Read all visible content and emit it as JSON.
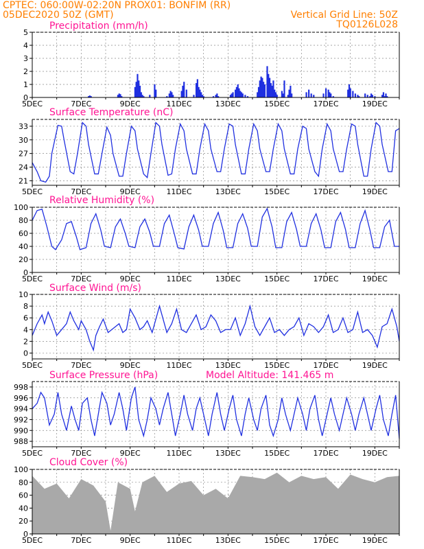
{
  "header": {
    "line1": "CPTEC:   060:00W-02:20N   PROX01: BONFIM (RR)",
    "line2": "05DEC2020 50Z (GMT)",
    "grid_note": "Vertical Grid Line: 50Z",
    "code": "TQ0126L028"
  },
  "date_ticks": [
    "5DEC",
    "7DEC",
    "9DEC",
    "11DEC",
    "13DEC",
    "15DEC",
    "17DEC",
    "19DEC"
  ],
  "colors": {
    "line": "#1f2fe0",
    "bar": "#1f2fe0",
    "cloud": "#a9a9a9",
    "header": "#ff7f00",
    "title": "#ff1493"
  },
  "chart_data": [
    {
      "type": "bar",
      "title": "Precipitation (mm/h)",
      "ylim": [
        0,
        5
      ],
      "yticks": [
        0,
        1,
        2,
        3,
        4,
        5
      ],
      "x_days": [
        2.3,
        2.35,
        2.4,
        3.5,
        3.55,
        3.6,
        3.65,
        4.2,
        4.25,
        4.3,
        4.35,
        4.4,
        4.45,
        4.5,
        4.55,
        4.8,
        5.0,
        5.05,
        5.5,
        5.6,
        5.65,
        5.7,
        5.75,
        6.1,
        6.15,
        6.2,
        6.3,
        6.6,
        6.7,
        6.75,
        6.8,
        6.85,
        6.9,
        6.95,
        7.0,
        7.4,
        7.5,
        7.55,
        7.6,
        8.1,
        8.15,
        8.2,
        8.3,
        8.35,
        8.4,
        8.45,
        8.5,
        8.55,
        8.6,
        8.7,
        8.8,
        9.2,
        9.25,
        9.3,
        9.35,
        9.4,
        9.45,
        9.5,
        9.6,
        9.65,
        9.7,
        9.75,
        9.8,
        9.85,
        9.9,
        9.95,
        10.0,
        10.2,
        10.25,
        10.3,
        10.45,
        10.5,
        10.55,
        10.6,
        11.2,
        11.3,
        11.4,
        11.5,
        11.9,
        12.0,
        12.1,
        12.15,
        12.2,
        12.3,
        12.9,
        12.95,
        13.0,
        13.1,
        13.2,
        13.3,
        13.35,
        13.6,
        13.7,
        13.8,
        13.85,
        13.9,
        14.0,
        14.3,
        14.35,
        14.4,
        14.45,
        14.5
      ],
      "values": [
        0.1,
        0.15,
        0.1,
        0.2,
        0.3,
        0.25,
        0.1,
        0.8,
        1.2,
        1.8,
        1.3,
        0.9,
        0.4,
        0.2,
        0.1,
        0.2,
        1.0,
        0.6,
        0.1,
        0.3,
        0.5,
        0.4,
        0.2,
        0.5,
        0.9,
        1.2,
        0.6,
        0.2,
        1.1,
        1.4,
        0.8,
        0.6,
        0.4,
        0.2,
        0.1,
        0.1,
        0.2,
        0.3,
        0.1,
        0.2,
        0.3,
        0.4,
        0.6,
        0.8,
        1.0,
        0.7,
        0.5,
        0.4,
        0.3,
        0.2,
        0.1,
        0.4,
        0.8,
        1.3,
        1.6,
        1.5,
        1.2,
        1.0,
        2.4,
        1.8,
        1.5,
        1.1,
        0.9,
        1.3,
        0.6,
        0.4,
        0.2,
        0.5,
        0.3,
        1.3,
        0.2,
        0.6,
        0.9,
        0.3,
        0.4,
        0.6,
        0.3,
        0.2,
        0.3,
        0.7,
        0.6,
        0.4,
        0.3,
        0.1,
        0.6,
        1.0,
        0.7,
        0.5,
        0.3,
        0.2,
        0.1,
        0.3,
        0.2,
        0.1,
        0.3,
        0.2,
        0.1,
        0.2,
        0.4,
        0.1,
        0.3,
        0.1
      ]
    },
    {
      "type": "line",
      "title": "Surface Temperature (nC)",
      "ylim": [
        20,
        34.5
      ],
      "yticks": [
        21,
        24,
        27,
        30,
        33
      ],
      "x_days": [
        0,
        0.2,
        0.35,
        0.55,
        0.7,
        0.8,
        1.05,
        1.2,
        1.3,
        1.55,
        1.7,
        1.85,
        2.05,
        2.2,
        2.3,
        2.55,
        2.7,
        2.85,
        3.05,
        3.2,
        3.3,
        3.55,
        3.7,
        3.85,
        4.05,
        4.2,
        4.3,
        4.55,
        4.7,
        4.85,
        5.05,
        5.2,
        5.3,
        5.55,
        5.7,
        5.85,
        6.05,
        6.2,
        6.3,
        6.55,
        6.7,
        6.85,
        7.05,
        7.2,
        7.3,
        7.55,
        7.7,
        7.85,
        8.05,
        8.2,
        8.3,
        8.55,
        8.7,
        8.85,
        9.05,
        9.2,
        9.3,
        9.55,
        9.7,
        9.85,
        10.05,
        10.2,
        10.3,
        10.55,
        10.7,
        10.85,
        11.05,
        11.2,
        11.3,
        11.55,
        11.7,
        11.85,
        12.05,
        12.2,
        12.3,
        12.55,
        12.7,
        12.85,
        13.05,
        13.2,
        13.3,
        13.55,
        13.7,
        13.85,
        14.05,
        14.2,
        14.3,
        14.55,
        14.7,
        14.85,
        15.0
      ],
      "values": [
        25,
        23,
        21,
        20.7,
        22,
        27,
        33.2,
        33,
        30,
        23,
        22.5,
        27,
        33.8,
        33,
        29,
        22.5,
        22.5,
        27,
        32.8,
        31,
        27,
        22,
        22,
        27,
        33,
        32,
        28,
        22.5,
        21.7,
        27,
        33.8,
        33,
        29,
        22.2,
        22.5,
        28,
        33.5,
        32,
        28,
        22.5,
        22.5,
        28,
        33.5,
        32,
        28,
        23,
        23,
        28,
        33.5,
        33,
        29,
        22.5,
        22.5,
        28,
        33.5,
        32,
        28,
        23,
        23,
        28,
        33.5,
        32,
        28,
        22.5,
        22.5,
        28,
        33,
        32.5,
        28,
        23,
        22,
        28,
        33.5,
        32,
        28,
        23,
        23,
        28,
        33.5,
        33,
        29,
        22,
        22,
        28,
        33.8,
        33,
        29,
        23,
        23,
        32,
        32.5
      ]
    },
    {
      "type": "line",
      "title": "Relative Humidity (%)",
      "ylim": [
        0,
        100
      ],
      "yticks": [
        0,
        20,
        40,
        60,
        80,
        100
      ],
      "x_days": [
        0,
        0.2,
        0.4,
        0.6,
        0.8,
        0.95,
        1.2,
        1.4,
        1.6,
        1.8,
        1.95,
        2.2,
        2.4,
        2.6,
        2.8,
        2.95,
        3.2,
        3.4,
        3.6,
        3.8,
        3.95,
        4.2,
        4.4,
        4.6,
        4.8,
        4.95,
        5.2,
        5.4,
        5.6,
        5.8,
        5.95,
        6.2,
        6.4,
        6.6,
        6.8,
        6.95,
        7.2,
        7.4,
        7.6,
        7.8,
        7.95,
        8.2,
        8.4,
        8.6,
        8.8,
        8.95,
        9.2,
        9.4,
        9.6,
        9.8,
        9.95,
        10.2,
        10.4,
        10.6,
        10.8,
        10.95,
        11.2,
        11.4,
        11.6,
        11.8,
        11.95,
        12.2,
        12.4,
        12.6,
        12.8,
        12.95,
        13.2,
        13.4,
        13.6,
        13.8,
        13.95,
        14.2,
        14.4,
        14.6,
        14.8,
        15.0
      ],
      "values": [
        80,
        95,
        97,
        70,
        40,
        35,
        50,
        75,
        78,
        55,
        35,
        38,
        75,
        90,
        65,
        40,
        38,
        70,
        82,
        60,
        40,
        38,
        70,
        82,
        62,
        40,
        40,
        75,
        88,
        60,
        38,
        36,
        70,
        88,
        65,
        40,
        40,
        75,
        92,
        65,
        38,
        38,
        75,
        90,
        68,
        40,
        40,
        85,
        98,
        70,
        38,
        38,
        78,
        92,
        66,
        40,
        40,
        75,
        90,
        65,
        38,
        38,
        78,
        92,
        66,
        38,
        38,
        75,
        95,
        65,
        38,
        38,
        70,
        80,
        40,
        40
      ]
    },
    {
      "type": "line",
      "title": "Surface Wind (m/s)",
      "ylim": [
        -1,
        10
      ],
      "yticks": [
        0,
        2,
        4,
        6,
        8,
        10
      ],
      "x_days": [
        0,
        0.2,
        0.4,
        0.5,
        0.65,
        0.8,
        1.0,
        1.2,
        1.4,
        1.55,
        1.7,
        1.9,
        2.0,
        2.2,
        2.35,
        2.5,
        2.6,
        2.75,
        2.9,
        3.1,
        3.25,
        3.4,
        3.55,
        3.7,
        3.85,
        4.0,
        4.2,
        4.4,
        4.55,
        4.7,
        4.9,
        5.0,
        5.2,
        5.4,
        5.5,
        5.7,
        5.9,
        6.1,
        6.3,
        6.5,
        6.7,
        6.9,
        7.1,
        7.3,
        7.5,
        7.7,
        7.9,
        8.1,
        8.3,
        8.5,
        8.7,
        8.9,
        9.1,
        9.3,
        9.5,
        9.7,
        9.9,
        10.1,
        10.3,
        10.5,
        10.7,
        10.9,
        11.1,
        11.3,
        11.5,
        11.7,
        11.9,
        12.1,
        12.3,
        12.5,
        12.7,
        12.9,
        13.1,
        13.3,
        13.5,
        13.7,
        13.9,
        14.1,
        14.3,
        14.5,
        14.7,
        14.9,
        15.0
      ],
      "values": [
        3,
        5,
        6.5,
        5,
        7,
        5.5,
        3,
        4,
        5,
        7,
        5.5,
        4,
        5.5,
        4,
        2,
        0.5,
        3,
        4.5,
        5.8,
        3.5,
        4,
        4.5,
        5,
        3.5,
        4,
        7.5,
        6,
        4,
        4.5,
        5.5,
        3.5,
        5,
        8,
        5,
        3.5,
        5,
        7.5,
        4,
        3.5,
        5,
        6.5,
        4,
        4.5,
        6.5,
        5.5,
        3.5,
        4,
        4,
        6,
        3,
        5,
        8,
        4.5,
        3,
        4.5,
        6,
        3.5,
        4,
        3,
        4,
        4.5,
        6,
        3,
        5,
        4.5,
        3.5,
        4.5,
        6.5,
        3.5,
        4,
        6,
        3.5,
        4,
        7,
        3.5,
        4,
        3,
        1,
        4.5,
        5,
        7.5,
        4.5,
        2
      ]
    },
    {
      "type": "line",
      "title": "Surface Pressure (hPa)",
      "annotation": "Model Altitude: 141.465  m",
      "ylim": [
        987,
        999
      ],
      "yticks": [
        988,
        990,
        992,
        994,
        996,
        998
      ],
      "x_days": [
        0,
        0.2,
        0.35,
        0.5,
        0.7,
        0.9,
        1.05,
        1.2,
        1.4,
        1.6,
        1.75,
        1.9,
        2.05,
        2.25,
        2.4,
        2.55,
        2.7,
        2.85,
        3.05,
        3.2,
        3.35,
        3.55,
        3.7,
        3.85,
        4.05,
        4.2,
        4.35,
        4.55,
        4.7,
        4.85,
        5.05,
        5.2,
        5.35,
        5.55,
        5.7,
        5.85,
        6.05,
        6.2,
        6.35,
        6.55,
        6.7,
        6.85,
        7.05,
        7.2,
        7.35,
        7.55,
        7.7,
        7.85,
        8.05,
        8.2,
        8.35,
        8.55,
        8.7,
        8.85,
        9.05,
        9.2,
        9.35,
        9.55,
        9.7,
        9.85,
        10.05,
        10.2,
        10.35,
        10.55,
        10.7,
        10.85,
        11.05,
        11.2,
        11.35,
        11.55,
        11.7,
        11.85,
        12.05,
        12.2,
        12.35,
        12.55,
        12.7,
        12.85,
        13.05,
        13.2,
        13.35,
        13.55,
        13.7,
        13.85,
        14.05,
        14.2,
        14.35,
        14.55,
        14.7,
        14.85,
        15.0
      ],
      "values": [
        994,
        995,
        997,
        996,
        991,
        993,
        997,
        993,
        990,
        994.5,
        992,
        990,
        995,
        996,
        992,
        989,
        993,
        997,
        995,
        991,
        993,
        997,
        994,
        990,
        996,
        998,
        992,
        989,
        992,
        996,
        994,
        991,
        994,
        997,
        993,
        989,
        993,
        996.5,
        993,
        990,
        994,
        996,
        992,
        989,
        993,
        997,
        993,
        990,
        994,
        996.5,
        992,
        989,
        993,
        996,
        992,
        990,
        994,
        996.5,
        991,
        989,
        992,
        996,
        993,
        990,
        993,
        996,
        993,
        990,
        994,
        996.5,
        992,
        989,
        993,
        996,
        993,
        990,
        993,
        996,
        993,
        990,
        993,
        996,
        993,
        990,
        994,
        996.5,
        992,
        989,
        993,
        996.5,
        988.5
      ]
    },
    {
      "type": "area",
      "title": "Cloud Cover (%)",
      "ylim": [
        0,
        100
      ],
      "yticks": [
        0,
        20,
        40,
        60,
        80,
        100
      ],
      "x_days": [
        0,
        0.5,
        1.0,
        1.5,
        2.0,
        2.5,
        3.0,
        3.2,
        3.5,
        4.0,
        4.2,
        4.5,
        5.0,
        5.5,
        6.0,
        6.5,
        7.0,
        7.5,
        8.0,
        8.5,
        9.0,
        9.5,
        10.0,
        10.5,
        11.0,
        11.5,
        12.0,
        12.5,
        13.0,
        13.5,
        14.0,
        14.5,
        15.0
      ],
      "values": [
        90,
        70,
        78,
        55,
        85,
        75,
        50,
        5,
        80,
        70,
        35,
        80,
        90,
        65,
        78,
        82,
        60,
        70,
        55,
        90,
        88,
        85,
        95,
        80,
        90,
        85,
        88,
        70,
        92,
        85,
        80,
        88,
        90
      ]
    }
  ]
}
